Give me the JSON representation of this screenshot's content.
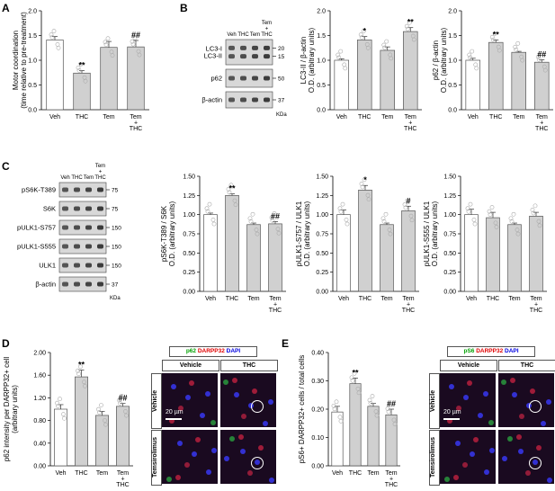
{
  "panels": {
    "A": "A",
    "B": "B",
    "C": "C",
    "D": "D",
    "E": "E"
  },
  "blot_units": "KDa",
  "blotB": {
    "lanes": [
      "Veh",
      "THC",
      "Tem",
      "Tem\n+\nTHC"
    ],
    "rows": [
      {
        "label": "LC3-I\nLC3-II",
        "markers": [
          "20",
          "15"
        ]
      },
      {
        "label": "p62",
        "markers": [
          "50"
        ]
      },
      {
        "label": "β-actin",
        "markers": [
          "37"
        ]
      }
    ]
  },
  "blotC": {
    "lanes": [
      "Veh",
      "THC",
      "Tem",
      "Tem\n+\nTHC"
    ],
    "rows": [
      {
        "label": "pS6K-T389",
        "markers": [
          "75"
        ]
      },
      {
        "label": "S6K",
        "markers": [
          "75"
        ]
      },
      {
        "label": "pULK1-S757",
        "markers": [
          "150"
        ]
      },
      {
        "label": "pULK1-S555",
        "markers": [
          "150"
        ]
      },
      {
        "label": "ULK1",
        "markers": [
          "150"
        ]
      },
      {
        "label": "β-actin",
        "markers": [
          "37"
        ]
      }
    ]
  },
  "microscopyD": {
    "legend": [
      {
        "text": "p62",
        "color": "#00a000"
      },
      {
        "text": "DARPP32",
        "color": "#e00000"
      },
      {
        "text": "DAPI",
        "color": "#0000e0"
      }
    ],
    "cols": [
      "Vehicle",
      "THC"
    ],
    "rows": [
      "Vehicle",
      "Temsirolimus"
    ],
    "scale": "20 µm"
  },
  "microscopyE": {
    "legend": [
      {
        "text": "pS6",
        "color": "#00a000"
      },
      {
        "text": "DARPP32",
        "color": "#e00000"
      },
      {
        "text": "DAPI",
        "color": "#0000e0"
      }
    ],
    "cols": [
      "Vehicle",
      "THC"
    ],
    "rows": [
      "Vehicle",
      "Temsirolimus"
    ],
    "scale": "20 µm"
  },
  "chart_data": [
    {
      "id": "A",
      "type": "bar",
      "categories": [
        "Veh",
        "THC",
        "Tem",
        "Tem\n+\nTHC"
      ],
      "values": [
        1.41,
        0.74,
        1.26,
        1.27
      ],
      "errors": [
        0.07,
        0.05,
        0.12,
        0.13
      ],
      "sig": [
        "",
        "**",
        "",
        "##"
      ],
      "ylabel": "Motor coordination\n(time relative to pre-treatment)",
      "ylim": [
        0,
        2
      ],
      "ticks": [
        "0.0",
        "0.5",
        "1.0",
        "1.5",
        "2.0"
      ]
    },
    {
      "id": "B1",
      "type": "bar",
      "categories": [
        "Veh",
        "THC",
        "Tem",
        "Tem\n+\nTHC"
      ],
      "values": [
        1.0,
        1.41,
        1.2,
        1.58
      ],
      "errors": [
        0.03,
        0.07,
        0.07,
        0.08
      ],
      "sig": [
        "",
        "*",
        "",
        "**"
      ],
      "ylabel": "LC3-II / β-actin\nO.D. (arbitrary units)",
      "ylim": [
        0,
        2
      ],
      "ticks": [
        "0.0",
        "0.5",
        "1.0",
        "1.5",
        "2.0"
      ]
    },
    {
      "id": "B2",
      "type": "bar",
      "categories": [
        "Veh",
        "THC",
        "Tem",
        "Tem\n+\nTHC"
      ],
      "values": [
        1.0,
        1.36,
        1.16,
        0.96
      ],
      "errors": [
        0.04,
        0.05,
        0.02,
        0.05
      ],
      "sig": [
        "",
        "**",
        "",
        "##"
      ],
      "ylabel": "p62 / β-actin\nO.D. (arbitrary units)",
      "ylim": [
        0,
        2
      ],
      "ticks": [
        "0.0",
        "0.5",
        "1.0",
        "1.5",
        "2.0"
      ]
    },
    {
      "id": "C1",
      "type": "bar",
      "categories": [
        "Veh",
        "THC",
        "Tem",
        "Tem\n+\nTHC"
      ],
      "values": [
        1.0,
        1.25,
        0.87,
        0.88
      ],
      "errors": [
        0.02,
        0.02,
        0.02,
        0.03
      ],
      "sig": [
        "",
        "**",
        "",
        "##"
      ],
      "ylabel": "pS6K-T389 / S6K\nO.D. (arbitrary units)",
      "ylim": [
        0,
        1.5
      ],
      "ticks": [
        "0.00",
        "0.25",
        "0.50",
        "0.75",
        "1.00",
        "1.25",
        "1.50"
      ]
    },
    {
      "id": "C2",
      "type": "bar",
      "categories": [
        "Veh",
        "THC",
        "Tem",
        "Tem\n+\nTHC"
      ],
      "values": [
        1.0,
        1.32,
        0.87,
        1.05
      ],
      "errors": [
        0.06,
        0.06,
        0.02,
        0.06
      ],
      "sig": [
        "",
        "*",
        "",
        "#"
      ],
      "ylabel": "pULK1-S757 / ULK1\nO.D. (arbitrary units)",
      "ylim": [
        0,
        1.5
      ],
      "ticks": [
        "0.00",
        "0.25",
        "0.50",
        "0.75",
        "1.00",
        "1.25",
        "1.50"
      ]
    },
    {
      "id": "C3",
      "type": "bar",
      "categories": [
        "Veh",
        "THC",
        "Tem",
        "Tem\n+\nTHC"
      ],
      "values": [
        1.0,
        0.96,
        0.87,
        0.98
      ],
      "errors": [
        0.07,
        0.07,
        0.02,
        0.05
      ],
      "sig": [
        "",
        "",
        "",
        ""
      ],
      "ylabel": "pULK1-S555 / ULK1\nO.D. (arbitrary units)",
      "ylim": [
        0,
        1.5
      ],
      "ticks": [
        "0.00",
        "0.25",
        "0.50",
        "0.75",
        "1.00",
        "1.25",
        "1.50"
      ]
    },
    {
      "id": "D",
      "type": "bar",
      "categories": [
        "Veh",
        "THC",
        "Tem",
        "Tem\n+\nTHC"
      ],
      "values": [
        1.0,
        1.57,
        0.89,
        1.05
      ],
      "errors": [
        0.08,
        0.12,
        0.07,
        0.05
      ],
      "sig": [
        "",
        "**",
        "",
        "##"
      ],
      "ylabel": "p62 intensity per DARPP32+ cell\n(arbitrary units)",
      "ylim": [
        0,
        2
      ],
      "ticks": [
        "0.00",
        "0.40",
        "0.80",
        "1.20",
        "1.60",
        "2.00"
      ]
    },
    {
      "id": "E",
      "type": "bar",
      "categories": [
        "Veh",
        "THC",
        "Tem",
        "Tem\n+\nTHC"
      ],
      "values": [
        0.19,
        0.29,
        0.21,
        0.18
      ],
      "errors": [
        0.02,
        0.02,
        0.01,
        0.02
      ],
      "sig": [
        "",
        "**",
        "",
        "##"
      ],
      "ylabel": "pS6+ DARPP32+ cells / total cells",
      "ylim": [
        0,
        0.4
      ],
      "ticks": [
        "0.00",
        "0.10",
        "0.20",
        "0.30",
        "0.40"
      ]
    }
  ]
}
